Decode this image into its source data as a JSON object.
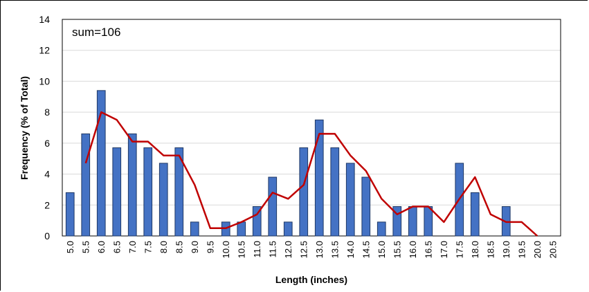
{
  "chart_data": {
    "type": "bar",
    "xlabel": "Length (inches)",
    "ylabel": "Frequency (% of Total)",
    "ylim": [
      0,
      14
    ],
    "yticks": [
      0,
      2,
      4,
      6,
      8,
      10,
      12,
      14
    ],
    "grid": true,
    "annotation": "sum=106",
    "categories": [
      "5.0",
      "5.5",
      "6.0",
      "6.5",
      "7.0",
      "7.5",
      "8.0",
      "8.5",
      "9.0",
      "9.5",
      "10.0",
      "10.5",
      "11.0",
      "11.5",
      "12.0",
      "12.5",
      "13.0",
      "13.5",
      "14.0",
      "14.5",
      "15.0",
      "15.5",
      "16.0",
      "16.5",
      "17.0",
      "17.5",
      "18.0",
      "18.5",
      "19.0",
      "19.5",
      "20.0",
      "20.5"
    ],
    "series": [
      {
        "kind": "bar",
        "color": "#4472C4",
        "values": [
          2.8,
          6.6,
          9.4,
          5.7,
          6.6,
          5.7,
          4.7,
          5.7,
          0.9,
          0,
          0.9,
          0.9,
          1.9,
          3.8,
          0.9,
          5.7,
          7.5,
          5.7,
          4.7,
          3.8,
          0.9,
          1.9,
          1.9,
          1.9,
          0,
          4.7,
          2.8,
          0,
          1.9,
          0,
          0,
          0
        ]
      },
      {
        "kind": "line",
        "color": "#C00000",
        "values": [
          null,
          4.7,
          8.0,
          7.5,
          6.1,
          6.1,
          5.2,
          5.2,
          3.3,
          0.5,
          0.5,
          0.9,
          1.4,
          2.8,
          2.4,
          3.3,
          6.6,
          6.6,
          5.2,
          4.2,
          2.4,
          1.4,
          1.9,
          1.9,
          0.9,
          2.4,
          3.8,
          1.4,
          0.9,
          0.9,
          0,
          null
        ]
      }
    ]
  }
}
